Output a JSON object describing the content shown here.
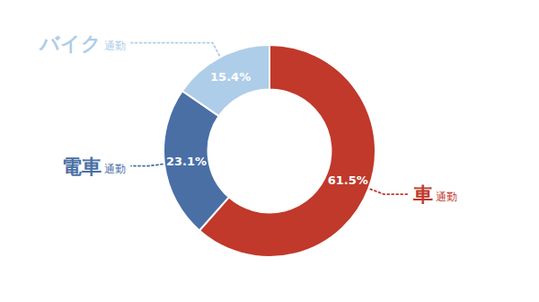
{
  "chart_data": {
    "type": "donut",
    "categories": [
      "車",
      "電車",
      "バイク"
    ],
    "values": [
      61.5,
      23.1,
      15.4
    ],
    "value_labels": [
      "61.5%",
      "23.1%",
      "15.4%"
    ],
    "data_labels": true,
    "colors": [
      "#c0392b",
      "#4a6fa5",
      "#aecde8"
    ],
    "annotations": [
      "通勤",
      "通勤",
      "通勤"
    ]
  }
}
